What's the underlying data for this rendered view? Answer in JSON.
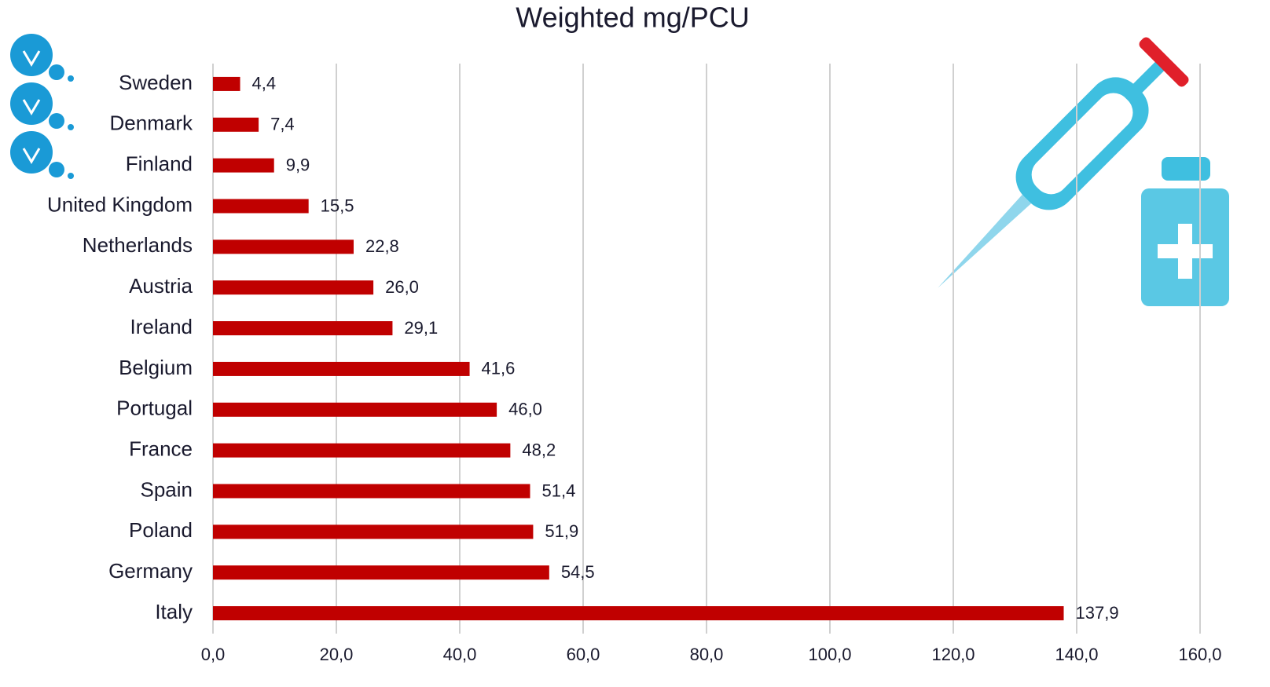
{
  "chart_data": {
    "type": "bar",
    "title": "Weighted mg/PCU",
    "categories": [
      "Sweden",
      "Denmark",
      "Finland",
      "United Kingdom",
      "Netherlands",
      "Austria",
      "Ireland",
      "Belgium",
      "Portugal",
      "France",
      "Spain",
      "Poland",
      "Germany",
      "Italy"
    ],
    "values": [
      4.4,
      7.4,
      9.9,
      15.5,
      22.8,
      26.0,
      29.1,
      41.6,
      46.0,
      48.2,
      51.4,
      51.9,
      54.5,
      137.9
    ],
    "value_labels": [
      "4,4",
      "7,4",
      "9,9",
      "15,5",
      "22,8",
      "26,0",
      "29,1",
      "41,6",
      "46,0",
      "48,2",
      "51,4",
      "51,9",
      "54,5",
      "137,9"
    ],
    "color": "#c00000",
    "xlim": [
      0,
      160
    ],
    "xticks": [
      {
        "value": 0,
        "label": "0,0"
      },
      {
        "value": 20,
        "label": "20,0"
      },
      {
        "value": 40,
        "label": "40,0"
      },
      {
        "value": 60,
        "label": "60,0"
      },
      {
        "value": 80,
        "label": "80,0"
      },
      {
        "value": 100,
        "label": "100,0"
      },
      {
        "value": 120,
        "label": "120,0"
      },
      {
        "value": 140,
        "label": "140,0"
      },
      {
        "value": 160,
        "label": "160,0"
      }
    ],
    "grid": true
  }
}
